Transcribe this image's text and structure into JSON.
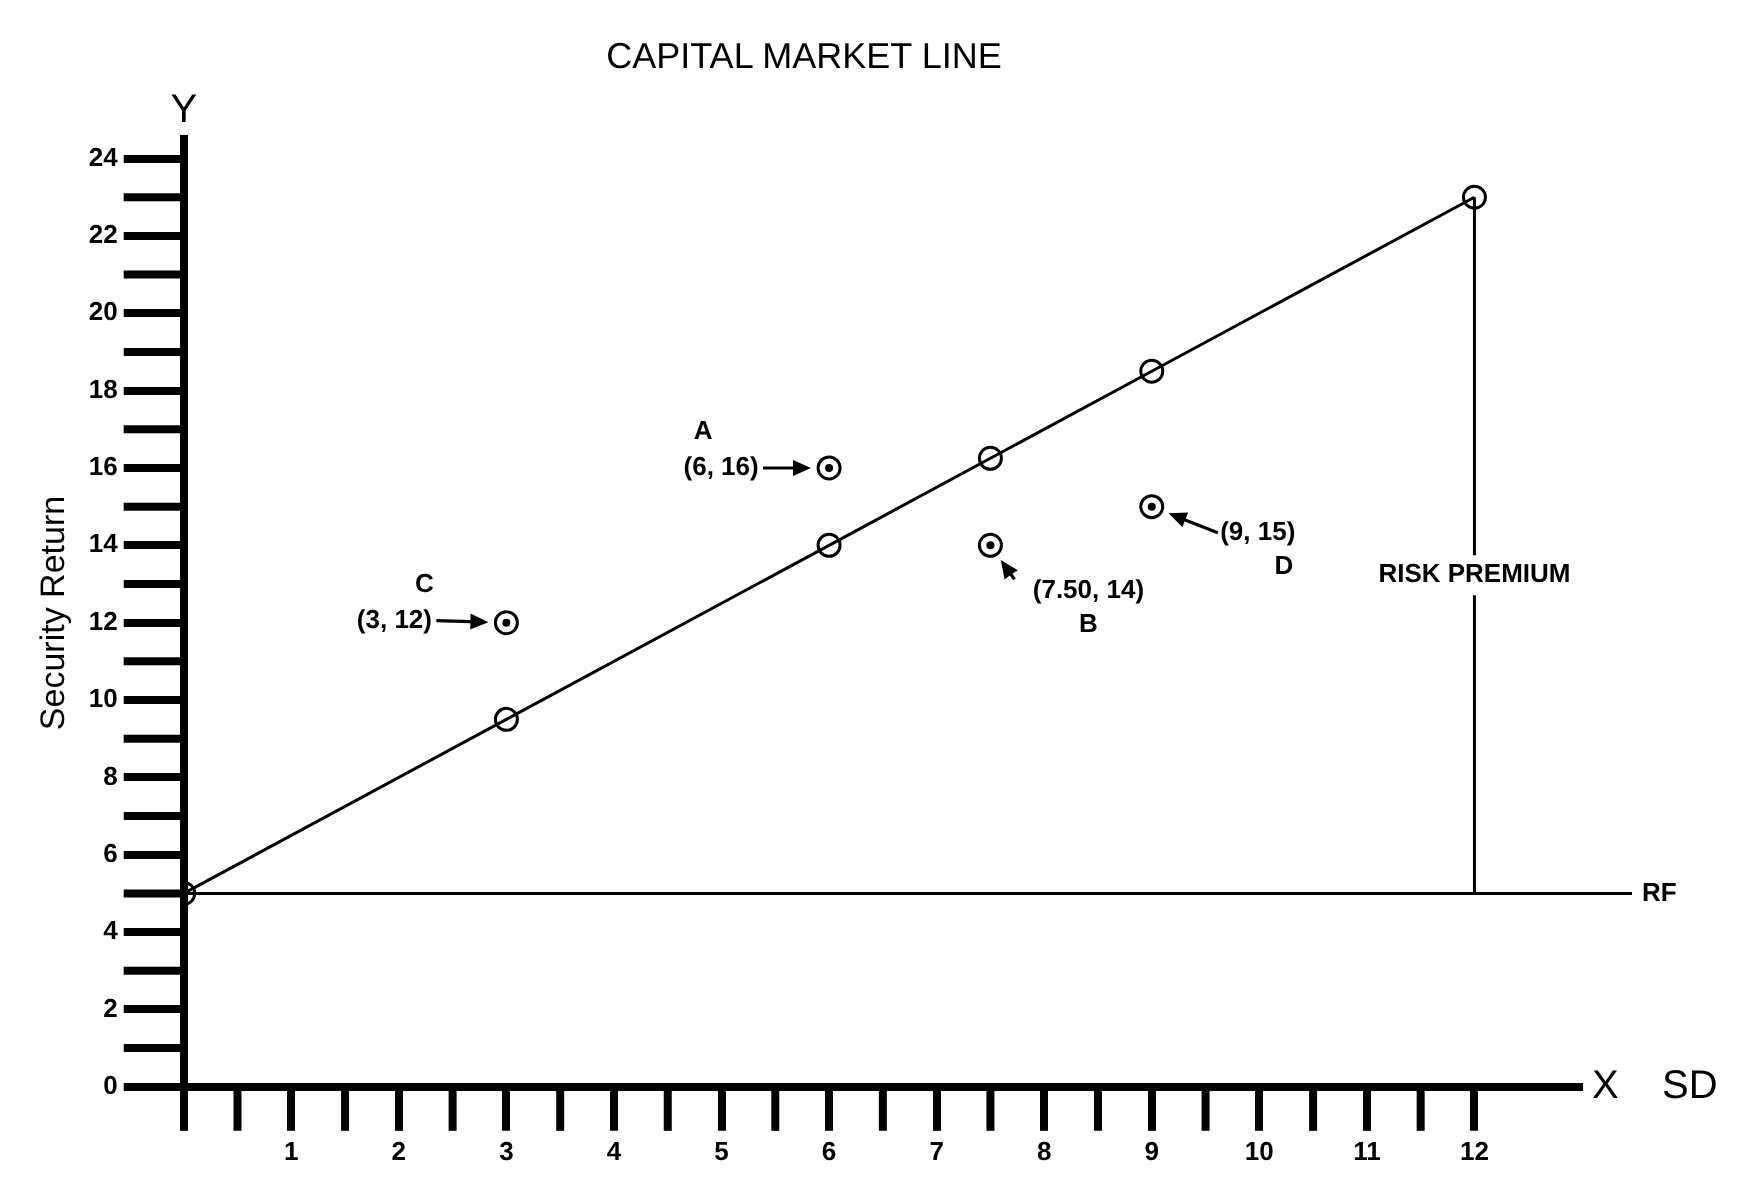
{
  "chart_data": {
    "type": "scatter",
    "title": "CAPITAL MARKET LINE",
    "xlabel": "SD",
    "ylabel": "Security Return",
    "xlim": [
      0,
      13
    ],
    "ylim": [
      0,
      24.5
    ],
    "xticks": [
      {
        "value": 0,
        "label": null
      },
      1,
      2,
      3,
      4,
      5,
      6,
      7,
      8,
      9,
      10,
      11,
      12
    ],
    "yticks": [
      0,
      2,
      4,
      6,
      8,
      10,
      12,
      14,
      16,
      18,
      20,
      22,
      24
    ],
    "grid": false,
    "legend": false,
    "series": [
      {
        "type": "line",
        "color": "#000000",
        "marker": "circle",
        "line_style": "solid",
        "x": [
          0,
          3,
          6,
          7.5,
          9,
          12
        ],
        "values": [
          5,
          9.5,
          14,
          16.25,
          18.5,
          23
        ]
      },
      {
        "color": "#000000",
        "marker": "circle",
        "x": [
          6,
          7.5,
          3,
          9
        ],
        "values": [
          16,
          14,
          12,
          15
        ]
      }
    ],
    "ref_lines": [
      {
        "axis": "y",
        "value": 5,
        "label": "RF",
        "color": "#000000"
      },
      {
        "axis": "x",
        "value": 12,
        "label": "RISK PREMIUM",
        "color": "#000000"
      }
    ],
    "annotations": [
      {
        "text": "(6, 16)",
        "x": 6,
        "y": 16
      },
      "A",
      {
        "text": "(7.50, 14)",
        "x": 7.5,
        "y": 14
      },
      "B",
      {
        "text": "(3, 12)",
        "x": 3,
        "y": 12
      },
      "C",
      {
        "text": "(9, 15)",
        "x": 9,
        "y": 15
      },
      "D",
      "Y",
      "X"
    ]
  }
}
